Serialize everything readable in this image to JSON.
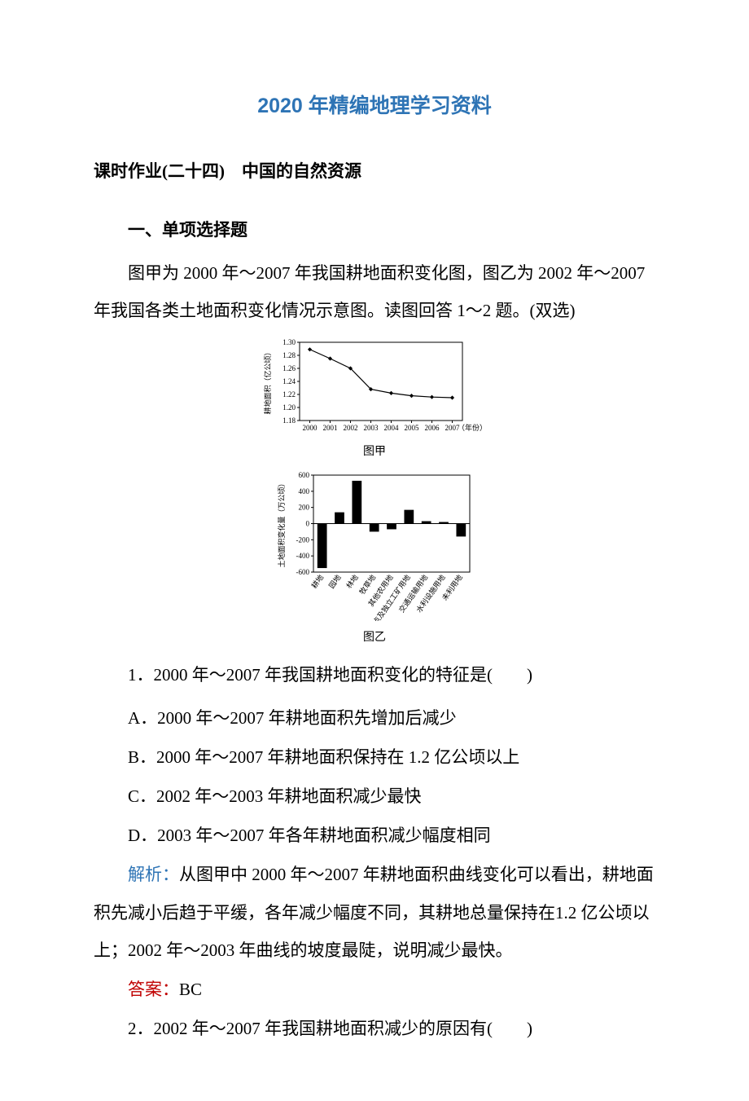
{
  "doc_title": "2020 年精编地理学习资料",
  "section_heading": "课时作业(二十四)　中国的自然资源",
  "sub_heading": "一、单项选择题",
  "intro_para": "图甲为 2000 年～2007 年我国耕地面积变化图，图乙为 2002 年～2007 年我国各类土地面积变化情况示意图。读图回答 1～2 题。(双选)",
  "q1": {
    "stem": "1．2000 年～2007 年我国耕地面积变化的特征是(　　)",
    "options": {
      "A": "A．2000 年～2007 年耕地面积先增加后减少",
      "B": "B．2000 年～2007 年耕地面积保持在 1.2 亿公顷以上",
      "C": "C．2002 年～2003 年耕地面积减少最快",
      "D": "D．2003 年～2007 年各年耕地面积减少幅度相同"
    },
    "analysis_label": "解析：",
    "analysis": "从图甲中 2000 年～2007 年耕地面积曲线变化可以看出，耕地面积先减小后趋于平缓，各年减少幅度不同，其耕地总量保持在1.2 亿公顷以上；2002 年～2003 年曲线的坡度最陡，说明减少最快。",
    "answer_label": "答案：",
    "answer": "BC"
  },
  "q2": {
    "stem": "2．2002 年～2007 年我国耕地面积减少的原因有(　　)"
  },
  "chart_a": {
    "caption": "图甲",
    "y_label": "耕地面积（亿公顷）",
    "x_label": "（年份）",
    "x_ticks": [
      "2000",
      "2001",
      "2002",
      "2003",
      "2004",
      "2005",
      "2006",
      "2007"
    ],
    "y_ticks": [
      "1.30",
      "1.28",
      "1.26",
      "1.24",
      "1.22",
      "1.20",
      "1.18"
    ],
    "ylim": [
      1.18,
      1.3
    ],
    "points_y": [
      1.289,
      1.275,
      1.26,
      1.228,
      1.222,
      1.218,
      1.216,
      1.215
    ],
    "line_color": "#000000",
    "marker": "diamond",
    "bg": "#ffffff",
    "border": "#000000",
    "font_size": 9
  },
  "chart_b": {
    "caption": "图乙",
    "y_label": "土地面积变化量（万公顷）",
    "y_ticks": [
      "600",
      "400",
      "200",
      "0",
      "-200",
      "-400",
      "-600"
    ],
    "ylim": [
      -600,
      600
    ],
    "categories": [
      "耕地",
      "园地",
      "林地",
      "牧草地",
      "其他农用地",
      "居民点及独立工矿用地",
      "交通运输用地",
      "水利设施用地",
      "未利用地"
    ],
    "values": [
      -550,
      140,
      530,
      -100,
      -70,
      170,
      30,
      20,
      -160
    ],
    "bar_color": "#000000",
    "border": "#000000",
    "font_size": 9
  },
  "colors": {
    "title": "#2e74b5",
    "analysis_label": "#2e74b5",
    "answer_label": "#c00000",
    "text": "#000000"
  }
}
